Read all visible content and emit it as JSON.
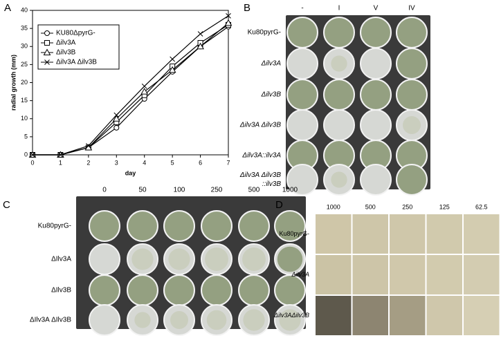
{
  "chart_data": {
    "type": "line",
    "panel": "A",
    "xlabel": "day",
    "ylabel": "radial growth (mm)",
    "x": [
      0,
      1,
      2,
      3,
      4,
      5,
      6,
      7
    ],
    "xlim": [
      0,
      7
    ],
    "xticks": [
      0,
      1,
      2,
      3,
      4,
      5,
      6,
      7
    ],
    "ylim": [
      0,
      40
    ],
    "yticks": [
      0,
      5,
      10,
      15,
      20,
      25,
      30,
      35,
      40
    ],
    "legend": "upper left",
    "series": [
      {
        "name": "KU80ΔpyrG-",
        "color": "#000000",
        "marker": "circle",
        "values": [
          0,
          0,
          2,
          7.5,
          15.5,
          23,
          30,
          35.5
        ]
      },
      {
        "name": "Δilv3A",
        "color": "#000000",
        "marker": "square",
        "values": [
          0,
          0,
          2,
          9,
          16.5,
          24.5,
          31,
          36
        ]
      },
      {
        "name": "Δilv3B",
        "color": "#000000",
        "marker": "triangle",
        "values": [
          0,
          0,
          2,
          10,
          17.5,
          23.5,
          30,
          36.5
        ]
      },
      {
        "name": "Δilv3A Δilv3B",
        "color": "#000000",
        "marker": "x",
        "values": [
          0,
          0,
          2.5,
          11,
          19,
          26.5,
          33.5,
          38.5
        ]
      }
    ]
  },
  "panel_b": {
    "letter": "B",
    "columns": [
      "-",
      "I",
      "V",
      "IV"
    ],
    "rows": [
      [
        "Ku80pyrG-"
      ],
      [
        "Δilv3A"
      ],
      [
        "Δilv3B"
      ],
      [
        "Δilv3A Δilv3B"
      ],
      [
        "Δilv3A::ilv3A"
      ],
      [
        "Δilv3A Δilv3B",
        "::ilv3B"
      ]
    ]
  },
  "panel_c": {
    "letter": "C",
    "columns": [
      "0",
      "50",
      "100",
      "250",
      "500",
      "1000"
    ],
    "rows": [
      "Ku80pyrG-",
      "ΔIlv3A",
      "ΔIlv3B",
      "ΔIlv3A ΔIlv3B"
    ]
  },
  "panel_d": {
    "letter": "D",
    "columns": [
      "1000",
      "500",
      "250",
      "125",
      "62.5"
    ],
    "rows": [
      "Ku80pyrG-",
      "Δilv3A",
      "Δilv3AΔilv3B"
    ]
  }
}
